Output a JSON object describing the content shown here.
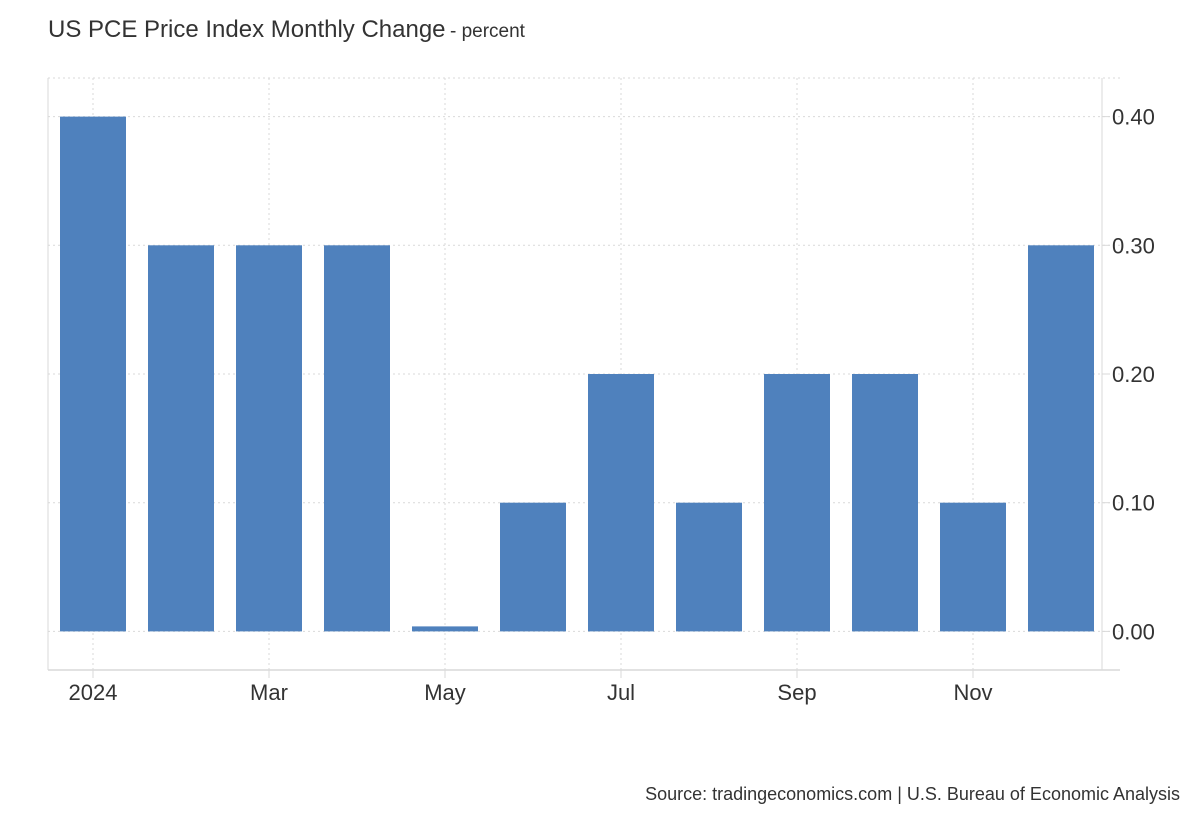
{
  "header": {
    "title": "US PCE Price Index Monthly Change",
    "subtitle": "- percent"
  },
  "footer": {
    "source": "Source: tradingeconomics.com | U.S. Bureau of Economic Analysis"
  },
  "chart_data": {
    "type": "bar",
    "title": "US PCE Price Index Monthly Change",
    "subtitle": "- percent",
    "categories": [
      "2024-01",
      "2024-02",
      "2024-03",
      "2024-04",
      "2024-05",
      "2024-06",
      "2024-07",
      "2024-08",
      "2024-09",
      "2024-10",
      "2024-11",
      "2024-12"
    ],
    "values": [
      0.4,
      0.3,
      0.3,
      0.3,
      0.0,
      0.1,
      0.2,
      0.1,
      0.2,
      0.2,
      0.1,
      0.3
    ],
    "x_tick_labels": [
      {
        "category": "2024-01",
        "label": "2024"
      },
      {
        "category": "2024-03",
        "label": "Mar"
      },
      {
        "category": "2024-05",
        "label": "May"
      },
      {
        "category": "2024-07",
        "label": "Jul"
      },
      {
        "category": "2024-09",
        "label": "Sep"
      },
      {
        "category": "2024-11",
        "label": "Nov"
      }
    ],
    "y_ticks": [
      0,
      0.1,
      0.2,
      0.3,
      0.4
    ],
    "y_tick_labels": [
      "0.00",
      "0.10",
      "0.20",
      "0.30",
      "0.40"
    ],
    "ylim": [
      -0.03,
      0.43
    ],
    "y_axis_side": "right",
    "grid": true,
    "legend": false,
    "bar_color": "#4f81bd",
    "grid_color": "#d9d9d9",
    "axis_color": "#d9d9d9"
  }
}
